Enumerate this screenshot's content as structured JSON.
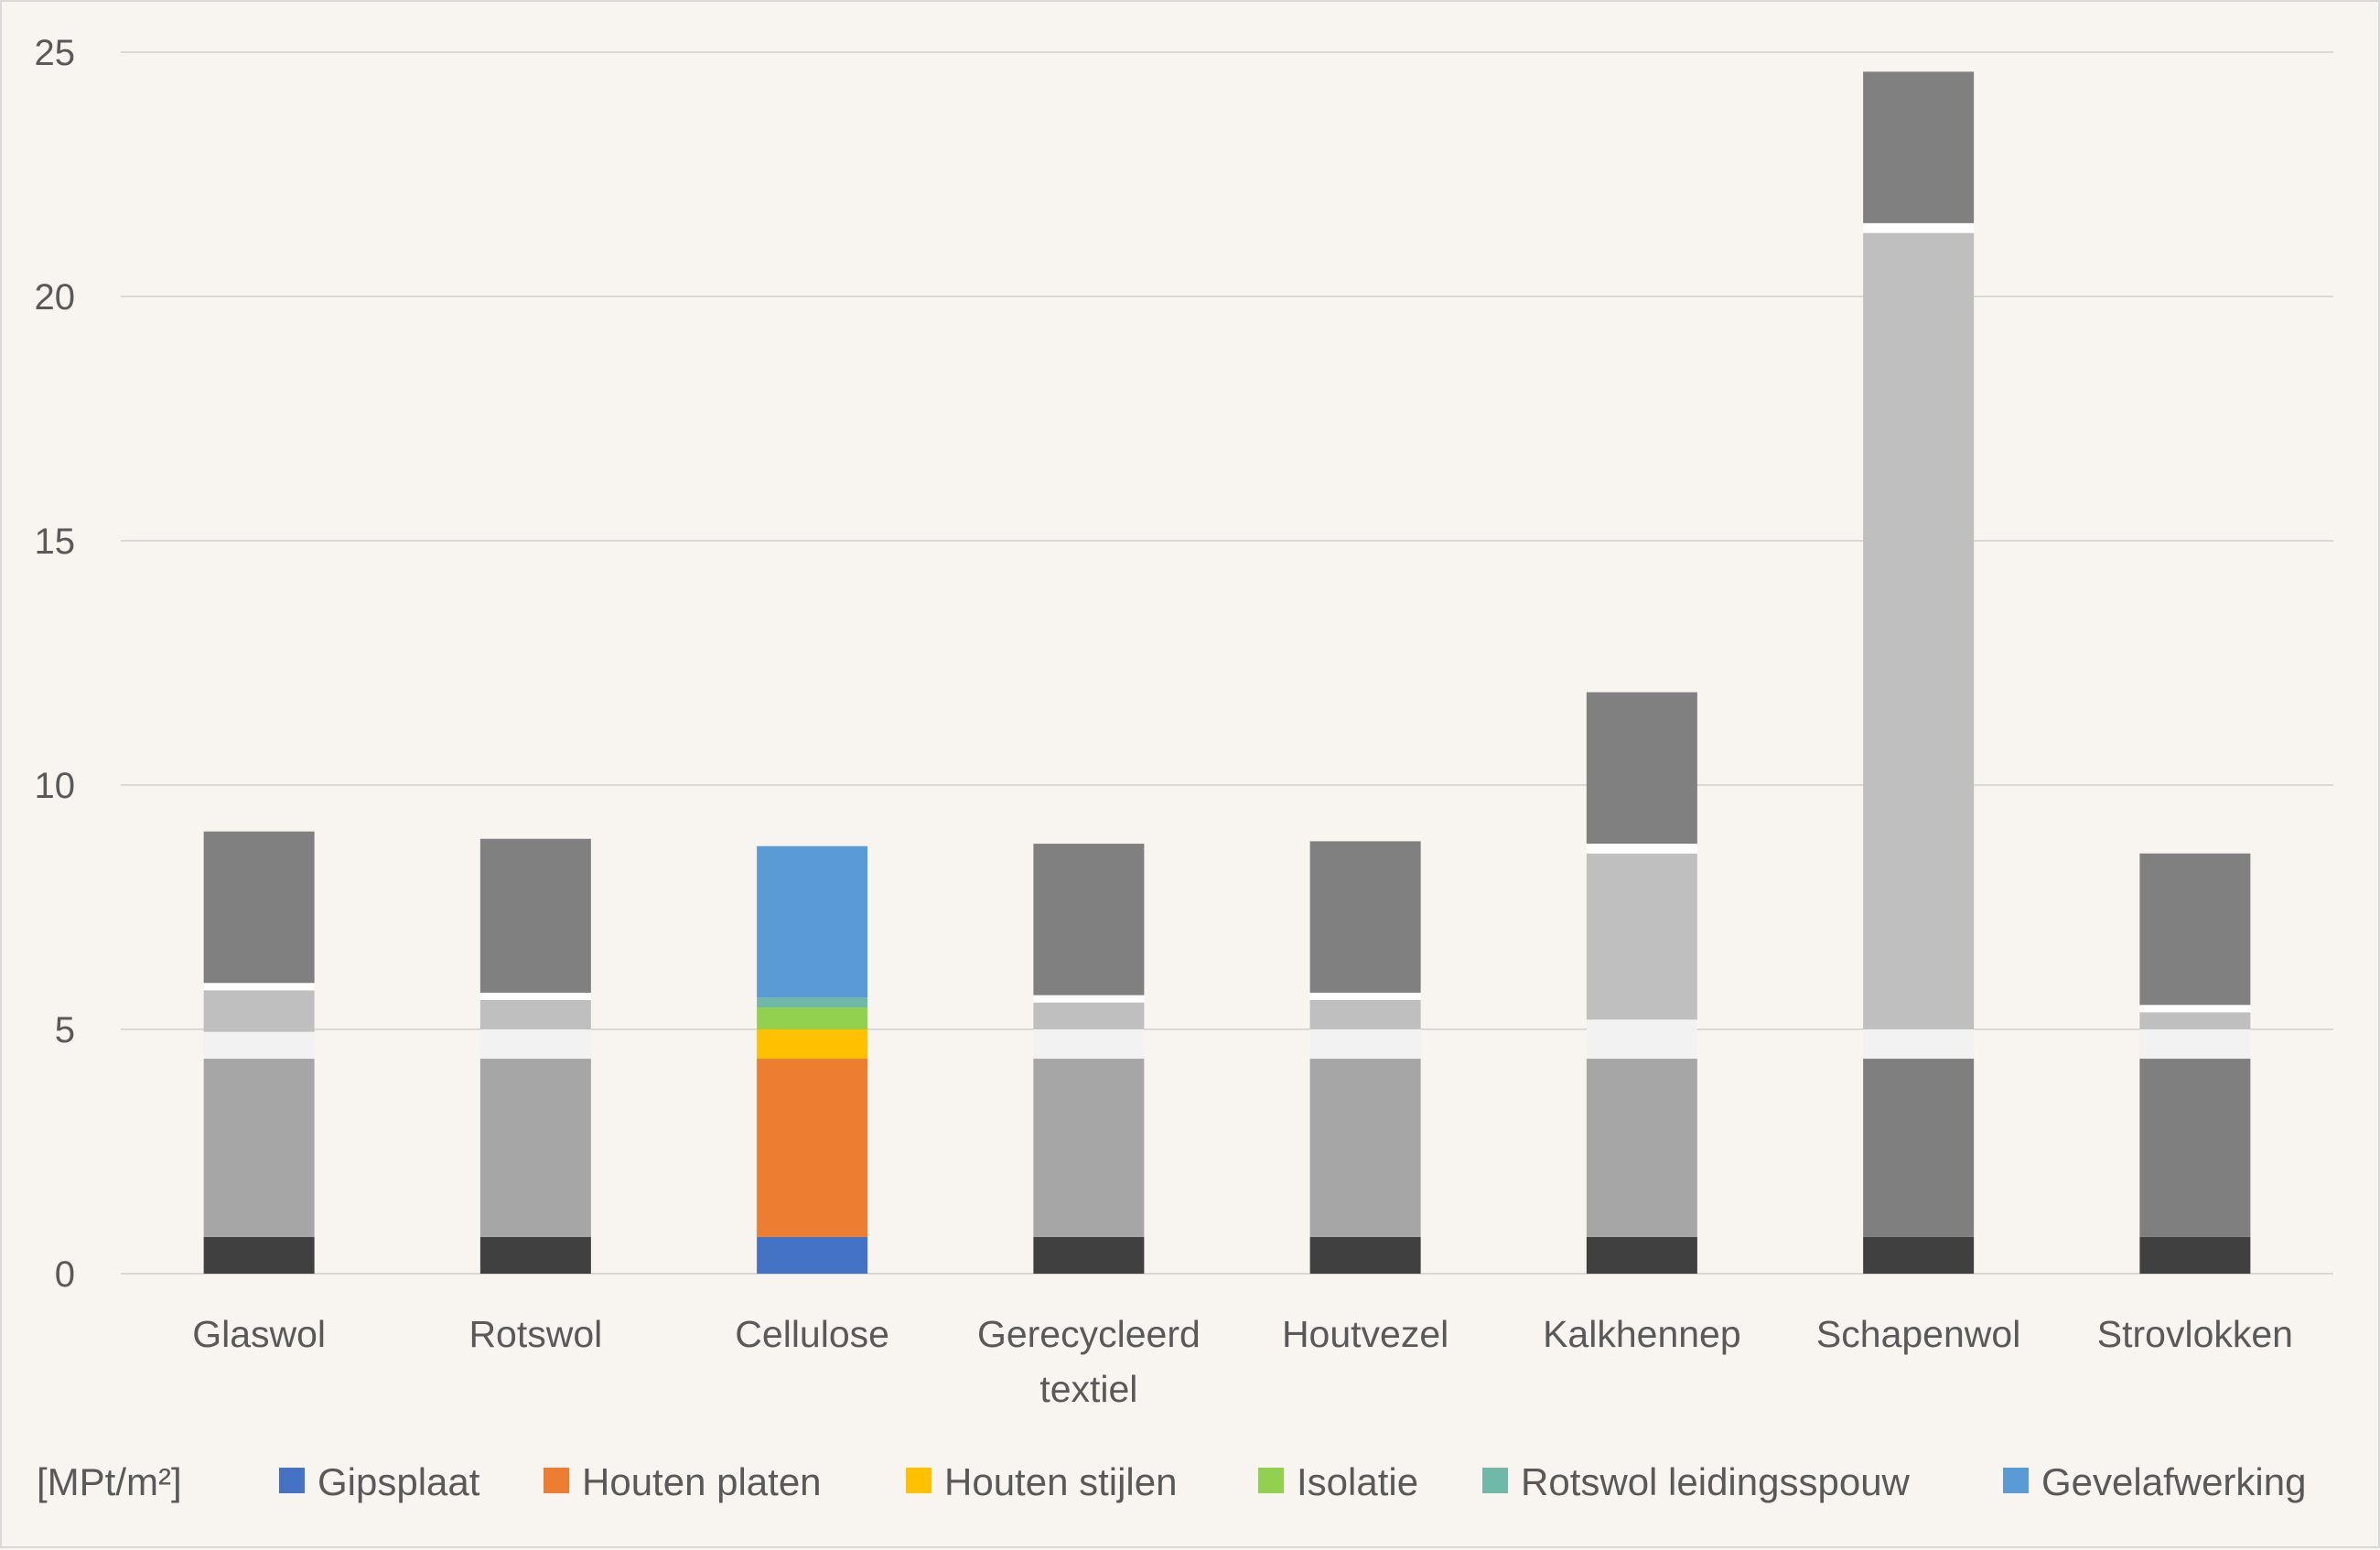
{
  "chart_data": {
    "type": "bar",
    "stacked": true,
    "title": "",
    "xlabel": "",
    "ylabel": "",
    "ylim": [
      0,
      25
    ],
    "yticks": [
      0,
      5,
      10,
      15,
      20,
      25
    ],
    "grid": true,
    "legend_position": "bottom",
    "unit_label": "[MPt/m²]",
    "categories": [
      [
        "Glaswol"
      ],
      [
        "Rotswol"
      ],
      [
        "Cellulose"
      ],
      [
        "Gerecycleerd",
        "textiel"
      ],
      [
        "Houtvezel"
      ],
      [
        "Kalkhennep"
      ],
      [
        "Schapenwol"
      ],
      [
        "Strovlokken"
      ]
    ],
    "legend": [
      {
        "name": "Gipsplaat",
        "color": "#4472c4"
      },
      {
        "name": "Houten platen",
        "color": "#ed7d31"
      },
      {
        "name": "Houten stijlen",
        "color": "#ffc000"
      },
      {
        "name": "Isolatie",
        "color": "#92d050"
      },
      {
        "name": "Rotswol leidingsspouw",
        "color": "#70b8a8"
      },
      {
        "name": "Gevelafwerking",
        "color": "#5b9bd5"
      }
    ],
    "bars": [
      {
        "segments": [
          {
            "value": 0.75,
            "color": "#404040"
          },
          {
            "value": 3.65,
            "color": "#a6a6a6"
          },
          {
            "value": 0.55,
            "color": "#f2f2f2"
          },
          {
            "value": 0.85,
            "color": "#bfbfbf"
          },
          {
            "value": 0.15,
            "color": "#ffffff"
          },
          {
            "value": 3.1,
            "color": "#808080"
          }
        ]
      },
      {
        "segments": [
          {
            "value": 0.75,
            "color": "#404040"
          },
          {
            "value": 3.65,
            "color": "#a6a6a6"
          },
          {
            "value": 0.6,
            "color": "#f2f2f2"
          },
          {
            "value": 0.6,
            "color": "#bfbfbf"
          },
          {
            "value": 0.15,
            "color": "#ffffff"
          },
          {
            "value": 3.15,
            "color": "#808080"
          }
        ]
      },
      {
        "segments": [
          {
            "value": 0.75,
            "color": "#4472c4"
          },
          {
            "value": 3.65,
            "color": "#ed7d31"
          },
          {
            "value": 0.6,
            "color": "#ffc000"
          },
          {
            "value": 0.45,
            "color": "#92d050"
          },
          {
            "value": 0.2,
            "color": "#70b8a8"
          },
          {
            "value": 3.1,
            "color": "#5b9bd5"
          }
        ]
      },
      {
        "segments": [
          {
            "value": 0.75,
            "color": "#404040"
          },
          {
            "value": 3.65,
            "color": "#a6a6a6"
          },
          {
            "value": 0.6,
            "color": "#f2f2f2"
          },
          {
            "value": 0.55,
            "color": "#bfbfbf"
          },
          {
            "value": 0.15,
            "color": "#ffffff"
          },
          {
            "value": 3.1,
            "color": "#808080"
          }
        ]
      },
      {
        "segments": [
          {
            "value": 0.75,
            "color": "#404040"
          },
          {
            "value": 3.65,
            "color": "#a6a6a6"
          },
          {
            "value": 0.6,
            "color": "#f2f2f2"
          },
          {
            "value": 0.6,
            "color": "#bfbfbf"
          },
          {
            "value": 0.15,
            "color": "#ffffff"
          },
          {
            "value": 3.1,
            "color": "#808080"
          }
        ]
      },
      {
        "segments": [
          {
            "value": 0.75,
            "color": "#404040"
          },
          {
            "value": 3.65,
            "color": "#a6a6a6"
          },
          {
            "value": 0.8,
            "color": "#f2f2f2"
          },
          {
            "value": 3.4,
            "color": "#bfbfbf"
          },
          {
            "value": 0.2,
            "color": "#ffffff"
          },
          {
            "value": 3.1,
            "color": "#808080"
          }
        ]
      },
      {
        "segments": [
          {
            "value": 0.75,
            "color": "#404040"
          },
          {
            "value": 3.65,
            "color": "#7f7f7f"
          },
          {
            "value": 0.6,
            "color": "#f2f2f2"
          },
          {
            "value": 16.3,
            "color": "#bfbfbf"
          },
          {
            "value": 0.2,
            "color": "#ffffff"
          },
          {
            "value": 3.1,
            "color": "#808080"
          }
        ]
      },
      {
        "segments": [
          {
            "value": 0.75,
            "color": "#404040"
          },
          {
            "value": 3.65,
            "color": "#7f7f7f"
          },
          {
            "value": 0.6,
            "color": "#f2f2f2"
          },
          {
            "value": 0.35,
            "color": "#bfbfbf"
          },
          {
            "value": 0.15,
            "color": "#ffffff"
          },
          {
            "value": 3.1,
            "color": "#808080"
          }
        ]
      }
    ]
  }
}
